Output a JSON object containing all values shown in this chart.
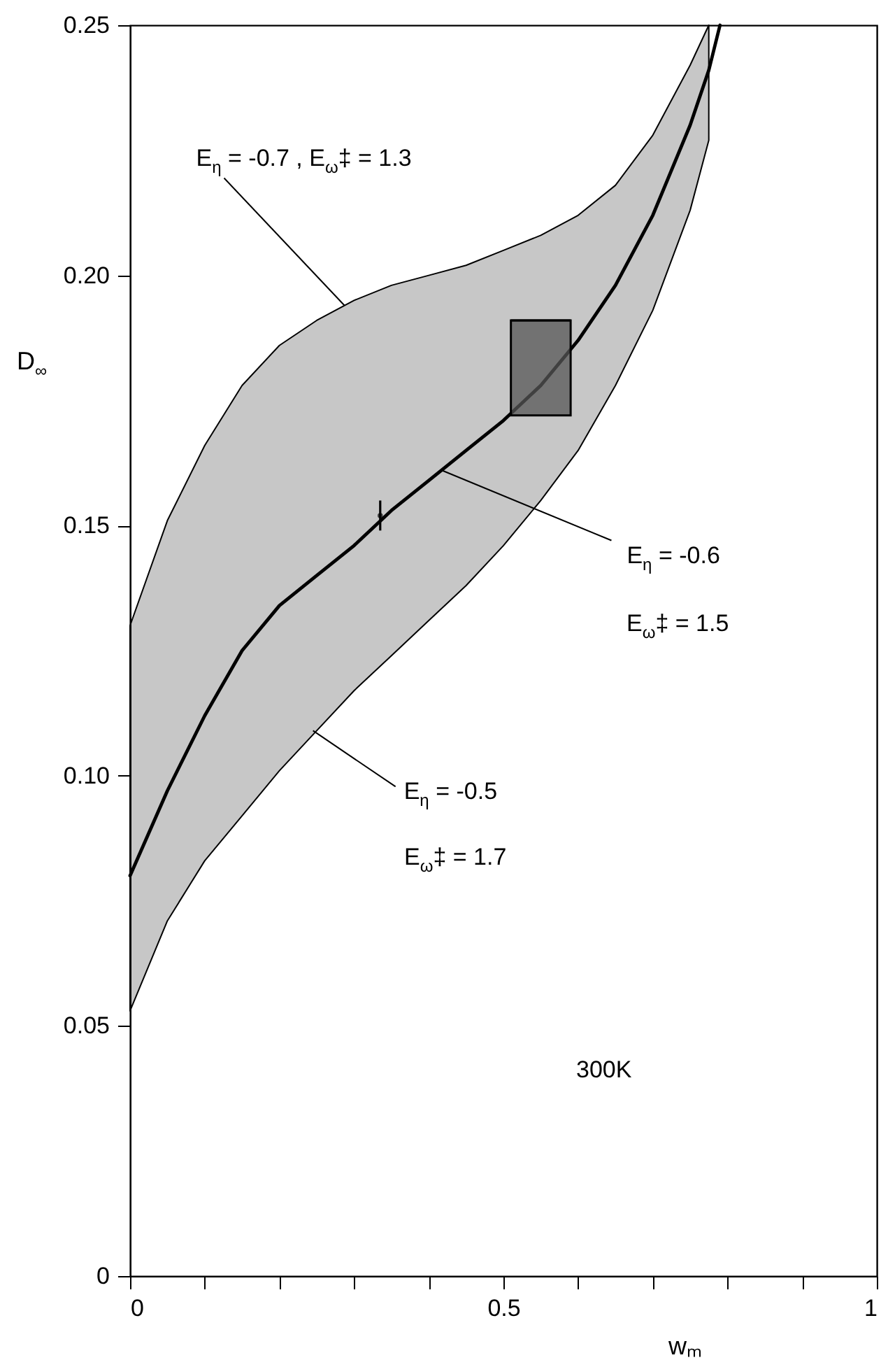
{
  "chart_data": {
    "type": "line",
    "xlabel": "wₘ",
    "ylabel": "D$_{∞}$",
    "xlim": [
      0,
      1
    ],
    "ylim": [
      0,
      0.25
    ],
    "xticks": [
      0,
      {
        "value": 0.1,
        "label": null
      },
      {
        "value": 0.2,
        "label": null
      },
      {
        "value": 0.3,
        "label": null
      },
      {
        "value": 0.4,
        "label": null
      },
      0.5,
      {
        "value": 0.6,
        "label": null
      },
      {
        "value": 0.7,
        "label": null
      },
      {
        "value": 0.8,
        "label": null
      },
      {
        "value": 0.9,
        "label": null
      },
      1
    ],
    "yticks": [
      0,
      0.05,
      {
        "value": 0.1,
        "label": "0.10"
      },
      0.15,
      {
        "value": 0.2,
        "label": "0.20"
      },
      0.25
    ],
    "x": [
      0,
      0.05,
      0.1,
      0.15,
      0.2,
      0.25,
      0.3,
      0.35,
      0.4,
      0.45,
      0.5,
      0.55,
      0.6,
      0.65,
      0.7,
      0.75,
      0.775,
      0.79
    ],
    "series": [
      {
        "color": "#000000",
        "values": [
          0.08,
          0.097,
          0.112,
          0.125,
          0.134,
          0.14,
          0.146,
          0.153,
          0.159,
          0.165,
          0.171,
          0.178,
          0.187,
          0.198,
          0.212,
          0.23,
          0.241,
          0.25
        ],
        "lower": [
          0.053,
          0.071,
          0.083,
          0.092,
          0.101,
          0.109,
          0.117,
          0.124,
          0.131,
          0.138,
          0.146,
          0.155,
          0.165,
          0.178,
          0.193,
          0.213,
          0.227,
          null
        ],
        "upper": [
          0.13,
          0.151,
          0.166,
          0.178,
          0.186,
          0.191,
          0.195,
          0.198,
          0.2,
          0.202,
          0.205,
          0.208,
          0.212,
          0.218,
          0.228,
          0.242,
          0.25,
          null
        ]
      },
      {
        "type": "bar",
        "color": "#555555",
        "x": [
          0.55
        ],
        "base": [
          0.172
        ],
        "values": [
          0.019
        ],
        "xerrors": [
          0.04
        ]
      },
      {
        "type": "scatter",
        "color": "#000000",
        "x": [
          0.335
        ],
        "values": [
          0.152
        ],
        "errors": [
          0.003
        ]
      }
    ],
    "annotations": [
      {
        "text": "E$_{η}$ = -0.7 , E$_{ω}$‡ = 1.3",
        "x": 0.287,
        "y": 0.194
      },
      {
        "text": "E$_{η}$ = -0.6",
        "x": 0.418,
        "y": 0.161
      },
      "E$_{ω}$‡ = 1.5",
      {
        "text": "E$_{η}$ = -0.5",
        "x": 0.245,
        "y": 0.109
      },
      "E$_{ω}$‡ = 1.7",
      "300K"
    ],
    "grid": false
  }
}
